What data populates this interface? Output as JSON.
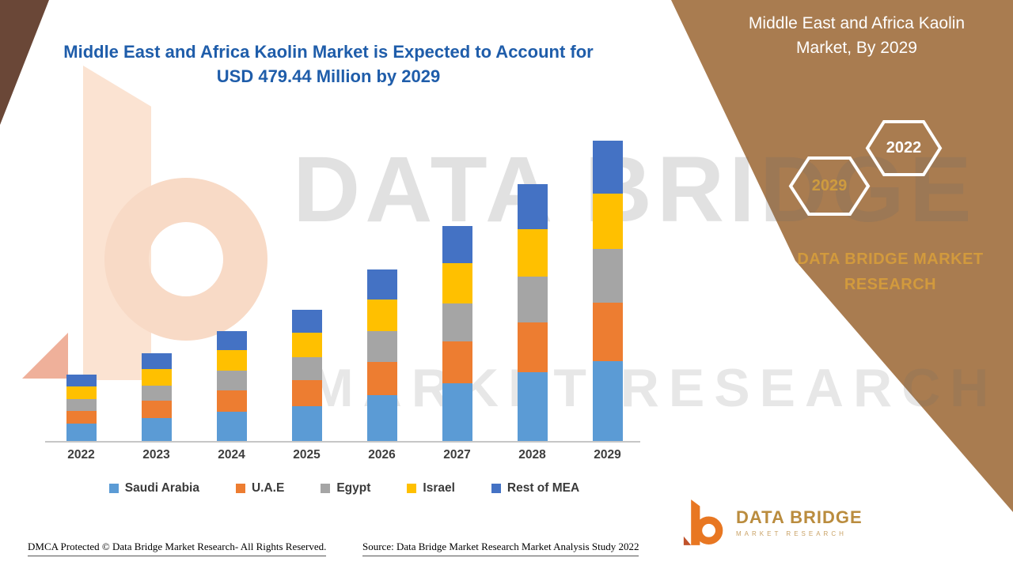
{
  "title": {
    "line1": "Middle East and Africa Kaolin Market is Expected to Account for",
    "line2": "USD 479.44 Million by 2029"
  },
  "panel": {
    "title_line1": "Middle East and Africa Kaolin",
    "title_line2": "Market, By 2029",
    "hex_forecast_year": "2029",
    "hex_base_year": "2022",
    "brand_line1": "DATA BRIDGE MARKET",
    "brand_line2": "RESEARCH"
  },
  "watermark": {
    "line1": "DATA BRIDGE",
    "line2": "MARKET RESEARCH"
  },
  "logo": {
    "name": "DATA BRIDGE",
    "subtitle": "MARKET RESEARCH"
  },
  "footer": {
    "dmca": "DMCA Protected © Data Bridge Market Research- All Rights Reserved.",
    "source": "Source: Data Bridge Market Research Market Analysis Study 2022"
  },
  "colors": {
    "title_blue": "#1F5DAA",
    "panel_brown": "#A97C50",
    "accent_gold": "#D29A3D",
    "corner_brown": "#6A4737"
  },
  "chart_data": {
    "type": "bar",
    "stacked": true,
    "title": "Middle East and Africa Kaolin Market is Expected to Account for USD 479.44 Million by 2029",
    "unit": "USD Million",
    "categories": [
      "2022",
      "2023",
      "2024",
      "2025",
      "2026",
      "2027",
      "2028",
      "2029"
    ],
    "series": [
      {
        "name": "Saudi Arabia",
        "color": "#5B9BD5",
        "values": [
          28,
          37,
          47,
          56,
          73,
          92,
          110,
          128
        ]
      },
      {
        "name": "U.A.E",
        "color": "#ED7D31",
        "values": [
          20,
          27,
          34,
          41,
          53,
          67,
          80,
          93
        ]
      },
      {
        "name": "Egypt",
        "color": "#A5A5A5",
        "values": [
          19,
          25,
          31,
          37,
          49,
          61,
          73,
          86
        ]
      },
      {
        "name": "Israel",
        "color": "#FFC000",
        "values": [
          20,
          26,
          33,
          39,
          51,
          64,
          76,
          89
        ]
      },
      {
        "name": "Rest of MEA",
        "color": "#4472C4",
        "values": [
          19,
          25,
          31,
          37,
          48,
          60,
          72,
          83.44
        ]
      }
    ],
    "totals": [
      106,
      140,
      176,
      210,
      274,
      344,
      411,
      479.44
    ],
    "xlabel": "",
    "ylabel": "",
    "ylim": [
      0,
      480
    ],
    "grid": false,
    "legend_position": "bottom"
  }
}
